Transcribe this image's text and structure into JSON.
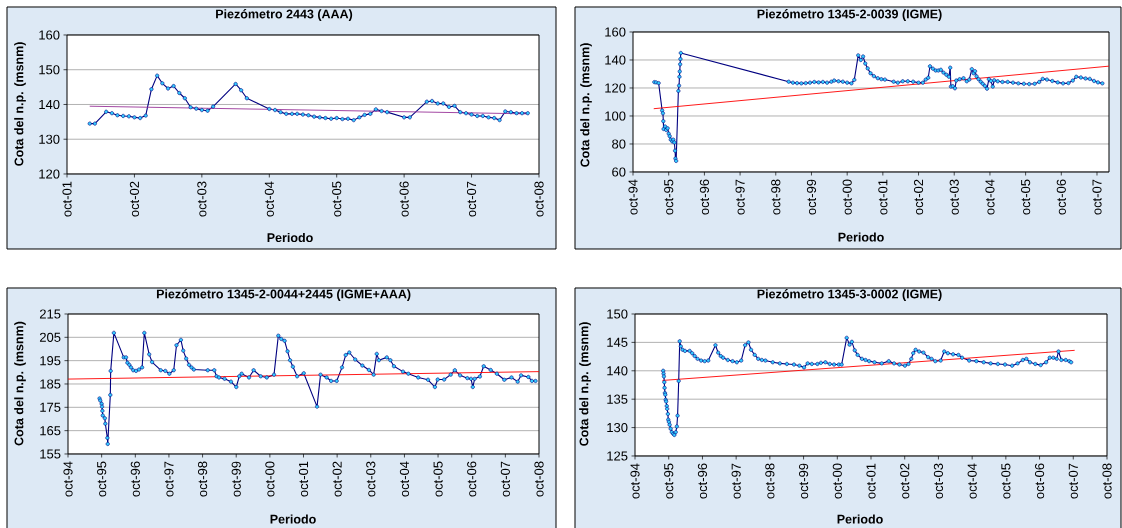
{
  "chart_data": [
    {
      "type": "line",
      "title": "Piezómetro 2443 (AAA)",
      "xlabel": "Periodo",
      "ylabel": "Cota del n.p. (msnm)",
      "grid": "y",
      "marker": "circle",
      "xlim": [
        "2001-10",
        "2008-10"
      ],
      "xticks": [
        {
          "value": "2001-10",
          "label": "oct-01"
        },
        {
          "value": "2002-10",
          "label": "oct-02"
        },
        {
          "value": "2003-10",
          "label": "oct-03"
        },
        {
          "value": "2004-10",
          "label": "oct-04"
        },
        {
          "value": "2005-10",
          "label": "oct-05"
        },
        {
          "value": "2006-10",
          "label": "oct-06"
        },
        {
          "value": "2007-10",
          "label": "oct-07"
        },
        {
          "value": "2008-10",
          "label": "oct-08"
        }
      ],
      "ylim": [
        120,
        160
      ],
      "yticks": [
        120,
        130,
        140,
        150,
        160
      ],
      "series": [
        {
          "color": "#000080",
          "x": [
            "2002-02",
            "2002-03",
            "2002-05",
            "2002-06",
            "2002-07",
            "2002-08",
            "2002-09",
            "2002-10",
            "2002-11",
            "2002-12",
            "2003-01",
            "2003-02",
            "2003-03",
            "2003-04",
            "2003-05",
            "2003-06",
            "2003-07",
            "2003-08",
            "2003-09",
            "2003-10",
            "2003-11",
            "2003-12",
            "2004-04",
            "2004-05",
            "2004-06",
            "2004-10",
            "2004-11",
            "2004-12",
            "2005-01",
            "2005-02",
            "2005-03",
            "2005-04",
            "2005-05",
            "2005-06",
            "2005-07",
            "2005-08",
            "2005-09",
            "2005-10",
            "2005-11",
            "2005-12",
            "2006-01",
            "2006-02",
            "2006-03",
            "2006-04",
            "2006-05",
            "2006-06",
            "2006-07",
            "2006-10",
            "2006-11",
            "2007-02",
            "2007-03",
            "2007-04",
            "2007-05",
            "2007-06",
            "2007-07",
            "2007-08",
            "2007-09",
            "2007-10",
            "2007-11",
            "2007-12",
            "2008-01",
            "2008-02",
            "2008-03",
            "2008-04",
            "2008-05",
            "2008-06",
            "2008-07",
            "2008-08"
          ],
          "values": [
            134.5,
            134.5,
            137.9,
            137.5,
            136.9,
            136.7,
            136.6,
            136.3,
            136.1,
            136.8,
            144.4,
            148.3,
            146.1,
            144.6,
            145.3,
            143.3,
            141.8,
            139.2,
            138.8,
            138.4,
            138.2,
            139.4,
            145.9,
            144.1,
            141.8,
            138.7,
            138.4,
            137.8,
            137.3,
            137.3,
            137.3,
            137.1,
            136.9,
            136.5,
            136.3,
            136.1,
            135.9,
            136.1,
            135.8,
            135.9,
            135.5,
            136.3,
            137.0,
            137.3,
            138.6,
            138.1,
            137.8,
            136.3,
            136.3,
            140.8,
            141.0,
            140.3,
            140.3,
            139.3,
            139.6,
            137.8,
            137.5,
            137.1,
            136.7,
            136.7,
            136.3,
            136.1,
            135.5,
            138.0,
            137.8,
            137.5,
            137.5,
            137.5
          ]
        },
        {
          "type": "line",
          "color": "#993399",
          "marker": "none",
          "x": [
            "2002-02",
            "2008-08"
          ],
          "values": [
            139.5,
            137.3
          ]
        }
      ]
    },
    {
      "type": "line",
      "title": "Piezómetro 1345-2-0039 (IGME)",
      "xlabel": "Periodo",
      "ylabel": "Cota del n.p. (msnm)",
      "grid": "y",
      "marker": "circle",
      "xlim": [
        "1994-10",
        "2008-02"
      ],
      "xticks": [
        {
          "value": "1994-10",
          "label": "oct-94"
        },
        {
          "value": "1995-10",
          "label": "oct-95"
        },
        {
          "value": "1996-10",
          "label": "oct-96"
        },
        {
          "value": "1997-10",
          "label": "oct-97"
        },
        {
          "value": "1998-10",
          "label": "oct-98"
        },
        {
          "value": "1999-10",
          "label": "oct-99"
        },
        {
          "value": "2000-10",
          "label": "oct-00"
        },
        {
          "value": "2001-10",
          "label": "oct-01"
        },
        {
          "value": "2002-10",
          "label": "oct-02"
        },
        {
          "value": "2003-10",
          "label": "oct-03"
        },
        {
          "value": "2004-10",
          "label": "oct-04"
        },
        {
          "value": "2005-10",
          "label": "oct-05"
        },
        {
          "value": "2006-10",
          "label": "oct-06"
        },
        {
          "value": "2007-10",
          "label": "oct-07"
        }
      ],
      "ylim": [
        60,
        160
      ],
      "yticks": [
        60,
        80,
        100,
        120,
        140,
        160
      ],
      "series": [
        {
          "color": "#000080",
          "x": [
            "1995-05-07",
            "1995-05-25",
            "1995-06-20",
            "1995-07-26",
            "1995-08-03",
            "1995-08-07",
            "1995-08-10",
            "1995-08-25",
            "1995-09-05",
            "1995-09-20",
            "1995-10-01",
            "1995-10-11",
            "1995-10-22",
            "1995-11-07",
            "1995-11-17",
            "1995-11-28",
            "1995-12-05",
            "1995-12-09",
            "1995-12-16",
            "1996-01-08",
            "1996-01-15",
            "1996-01-19",
            "1996-01-22",
            "1996-01-26",
            "1996-01-29",
            "1996-02-02",
            "1999-02-10",
            "1999-03-25",
            "1999-05-07",
            "1999-06-20",
            "1999-08-03",
            "1999-09-16",
            "1999-10-30",
            "1999-12-13",
            "2000-01-26",
            "2000-03-09",
            "2000-04-22",
            "2000-05-21",
            "2000-07-04",
            "2000-08-17",
            "2000-10-01",
            "2000-11-14",
            "2000-12-13",
            "2001-01-22",
            "2001-02-17",
            "2001-03-13",
            "2001-04-04",
            "2001-04-29",
            "2001-05-28",
            "2001-07-01",
            "2001-08-10",
            "2001-09-16",
            "2001-10-22",
            "2002-01-19",
            "2002-03-03",
            "2002-04-22",
            "2002-06-13",
            "2002-08-07",
            "2002-10-01",
            "2002-11-14",
            "2002-12-13",
            "2003-01-08",
            "2003-01-26",
            "2003-02-25",
            "2003-03-25",
            "2003-04-22",
            "2003-05-17",
            "2003-06-13",
            "2003-07-12",
            "2003-08-07",
            "2003-08-21",
            "2003-08-28",
            "2003-09-16",
            "2003-10-08",
            "2003-10-22",
            "2003-11-25",
            "2004-01-04",
            "2004-02-06",
            "2004-03-03",
            "2004-03-29",
            "2004-04-16",
            "2004-05-01",
            "2004-05-17",
            "2004-06-06",
            "2004-06-28",
            "2004-07-19",
            "2004-08-10",
            "2004-09-01",
            "2004-09-20",
            "2004-10-11",
            "2004-10-30",
            "2004-11-14",
            "2004-12-20",
            "2005-02-06",
            "2005-04-01",
            "2005-05-25",
            "2005-07-19",
            "2005-09-13",
            "2005-11-07",
            "2006-01-01",
            "2006-02-17",
            "2006-03-25",
            "2006-05-07",
            "2006-07-01",
            "2006-08-25",
            "2006-10-19",
            "2006-12-13",
            "2007-01-26",
            "2007-03-03",
            "2007-04-19",
            "2007-06-06",
            "2007-07-19",
            "2007-09-01",
            "2007-10-11",
            "2007-11-25"
          ],
          "values": [
            124.2,
            124.0,
            123.5,
            103.9,
            101.9,
            96.3,
            90.7,
            92.5,
            90.0,
            91.2,
            87.4,
            85.6,
            83.1,
            81.8,
            83.1,
            81.1,
            75.2,
            69.6,
            67.9,
            117.9,
            121.7,
            128.0,
            131.8,
            136.9,
            140.7,
            145.0,
            124.5,
            123.8,
            123.5,
            123.3,
            123.5,
            123.8,
            124.3,
            124.0,
            124.3,
            123.8,
            124.5,
            125.3,
            124.8,
            124.5,
            123.8,
            123.3,
            125.8,
            143.3,
            140.0,
            142.5,
            137.5,
            134.0,
            130.5,
            128.5,
            127.0,
            126.3,
            126.0,
            124.5,
            123.8,
            124.8,
            124.8,
            124.5,
            123.8,
            123.8,
            126.0,
            127.3,
            135.5,
            133.8,
            132.5,
            132.5,
            133.0,
            131.0,
            129.5,
            128.0,
            134.5,
            121.0,
            121.3,
            119.8,
            125.3,
            126.3,
            127.0,
            124.8,
            126.0,
            133.5,
            130.5,
            132.0,
            128.3,
            126.3,
            124.5,
            123.0,
            121.5,
            119.5,
            126.3,
            125.0,
            121.0,
            125.5,
            124.8,
            124.3,
            124.3,
            123.8,
            123.3,
            123.0,
            122.8,
            123.0,
            124.3,
            126.5,
            126.0,
            125.0,
            124.0,
            123.3,
            123.5,
            125.3,
            128.0,
            127.5,
            126.8,
            126.5,
            125.0,
            124.0,
            123.3
          ]
        },
        {
          "type": "line",
          "color": "#ff0000",
          "marker": "none",
          "x": [
            "1995-05-01",
            "2008-02-01"
          ],
          "values": [
            105.2,
            135.6
          ]
        }
      ]
    },
    {
      "type": "line",
      "title": "Piezómetro 1345-2-0044+2445 (IGME+AAA)",
      "xlabel": "Periodo",
      "ylabel": "Cota del n.p. (msnm)",
      "grid": "y",
      "marker": "circle",
      "xlim": [
        "1994-10",
        "2008-10"
      ],
      "xticks": [
        {
          "value": "1994-10",
          "label": "oct-94"
        },
        {
          "value": "1995-10",
          "label": "oct-95"
        },
        {
          "value": "1996-10",
          "label": "oct-96"
        },
        {
          "value": "1997-10",
          "label": "oct-97"
        },
        {
          "value": "1998-10",
          "label": "oct-98"
        },
        {
          "value": "1999-10",
          "label": "oct-99"
        },
        {
          "value": "2000-10",
          "label": "oct-00"
        },
        {
          "value": "2001-10",
          "label": "oct-01"
        },
        {
          "value": "2002-10",
          "label": "oct-02"
        },
        {
          "value": "2003-10",
          "label": "oct-03"
        },
        {
          "value": "2004-10",
          "label": "oct-04"
        },
        {
          "value": "2005-10",
          "label": "oct-05"
        },
        {
          "value": "2006-10",
          "label": "oct-06"
        },
        {
          "value": "2007-10",
          "label": "oct-07"
        },
        {
          "value": "2008-10",
          "label": "oct-08"
        }
      ],
      "ylim": [
        155,
        215
      ],
      "yticks": [
        155,
        165,
        175,
        185,
        195,
        205,
        215
      ],
      "series": [
        {
          "color": "#000080",
          "x": [
            "1995-09-08",
            "1995-09-16",
            "1995-10-01",
            "1995-10-05",
            "1995-10-09",
            "1995-10-13",
            "1995-11-05",
            "1995-11-10",
            "1995-12-02",
            "1995-12-06",
            "1996-01-03",
            "1996-01-07",
            "1996-02-11",
            "1996-05-28",
            "1996-06-22",
            "1996-07-07",
            "1996-07-28",
            "1996-08-15",
            "1996-09-08",
            "1996-10-09",
            "1996-11-10",
            "1996-12-14",
            "1997-01-07",
            "1997-03-01",
            "1997-04-01",
            "1997-07-04",
            "1997-08-23",
            "1997-10-06",
            "1997-11-22",
            "1997-12-22",
            "1998-02-08",
            "1998-03-05",
            "1998-04-06",
            "1998-05-07",
            "1998-06-03",
            "1998-06-28",
            "1998-11-26",
            "1999-02-05",
            "1999-03-02",
            "1999-03-28",
            "1999-05-28",
            "1999-08-05",
            "1999-10-02",
            "1999-11-03",
            "1999-11-29",
            "2000-02-17",
            "2000-04-07",
            "2000-06-23",
            "2000-08-28",
            "2000-11-15",
            "2001-01-01",
            "2001-02-02",
            "2001-03-10",
            "2001-04-11",
            "2001-05-08",
            "2001-06-08",
            "2001-07-24",
            "2001-10-04",
            "2002-02-25",
            "2002-04-04",
            "2002-06-09",
            "2002-07-28",
            "2002-09-26",
            "2002-11-23",
            "2003-01-02",
            "2003-02-10",
            "2003-04-15",
            "2003-07-02",
            "2003-09-11",
            "2003-11-01",
            "2003-12-05",
            "2003-12-28",
            "2004-03-23",
            "2004-05-01",
            "2004-06-09",
            "2004-09-15",
            "2004-11-13",
            "2005-02-28",
            "2005-06-14",
            "2005-08-28",
            "2005-09-27",
            "2005-12-06",
            "2006-02-15",
            "2006-04-01",
            "2006-05-28",
            "2006-08-15",
            "2006-09-24",
            "2006-10-13",
            "2006-11-02",
            "2006-12-29",
            "2007-02-08",
            "2007-04-25",
            "2007-07-01",
            "2007-09-20",
            "2007-12-07",
            "2008-02-12",
            "2008-03-20",
            "2008-06-07",
            "2008-07-16",
            "2008-08-24"
          ],
          "values": [
            178.8,
            177.9,
            176.5,
            175.3,
            173.5,
            171.5,
            170.3,
            168.0,
            161.9,
            159.3,
            180.3,
            190.6,
            206.9,
            196.4,
            196.4,
            194.1,
            193.2,
            192.1,
            190.9,
            190.6,
            191.2,
            192.1,
            206.9,
            197.7,
            194.4,
            190.9,
            190.6,
            189.4,
            190.9,
            201.6,
            203.9,
            199.3,
            195.9,
            193.2,
            192.1,
            191.2,
            190.9,
            190.9,
            188.3,
            187.8,
            187.2,
            186.0,
            183.7,
            188.3,
            189.4,
            187.8,
            190.9,
            188.3,
            187.8,
            189.0,
            205.7,
            204.3,
            203.5,
            199.0,
            195.2,
            192.4,
            188.3,
            189.6,
            175.3,
            189.0,
            187.8,
            186.3,
            186.3,
            192.1,
            197.4,
            198.5,
            195.5,
            192.9,
            191.0,
            189.0,
            197.9,
            195.2,
            196.4,
            195.2,
            192.6,
            190.3,
            189.4,
            187.8,
            186.8,
            183.7,
            186.9,
            186.9,
            189.0,
            190.9,
            188.7,
            187.5,
            187.2,
            183.7,
            187.2,
            188.2,
            192.6,
            191.0,
            189.4,
            186.8,
            187.8,
            186.0,
            188.7,
            188.0,
            186.3,
            186.3
          ]
        },
        {
          "type": "line",
          "color": "#ff0000",
          "marker": "none",
          "x": [
            "1994-10-01",
            "2008-10-01"
          ],
          "values": [
            187.1,
            190.3
          ]
        }
      ]
    },
    {
      "type": "line",
      "title": "Piezómetro 1345-3-0002 (IGME)",
      "xlabel": "Periodo",
      "ylabel": "Cota del n.p. (msnm)",
      "grid": "y",
      "marker": "circle",
      "xlim": [
        "1994-10",
        "2008-10"
      ],
      "xticks": [
        {
          "value": "1994-10",
          "label": "oct-94"
        },
        {
          "value": "1995-10",
          "label": "oct-95"
        },
        {
          "value": "1996-10",
          "label": "oct-96"
        },
        {
          "value": "1997-10",
          "label": "oct-97"
        },
        {
          "value": "1998-10",
          "label": "oct-98"
        },
        {
          "value": "1999-10",
          "label": "oct-99"
        },
        {
          "value": "2000-10",
          "label": "oct-00"
        },
        {
          "value": "2001-10",
          "label": "oct-01"
        },
        {
          "value": "2002-10",
          "label": "oct-02"
        },
        {
          "value": "2003-10",
          "label": "oct-03"
        },
        {
          "value": "2004-10",
          "label": "oct-04"
        },
        {
          "value": "2005-10",
          "label": "oct-05"
        },
        {
          "value": "2006-10",
          "label": "oct-06"
        },
        {
          "value": "2007-10",
          "label": "oct-07"
        },
        {
          "value": "2008-10",
          "label": "oct-08"
        }
      ],
      "ylim": [
        125,
        150
      ],
      "yticks": [
        125,
        130,
        135,
        140,
        145,
        150
      ],
      "series": [
        {
          "color": "#000080",
          "x": [
            "1995-08-02",
            "1995-08-06",
            "1995-08-10",
            "1995-08-14",
            "1995-08-17",
            "1995-08-21",
            "1995-08-25",
            "1995-08-29",
            "1995-09-03",
            "1995-09-10",
            "1995-09-14",
            "1995-09-22",
            "1995-09-26",
            "1995-10-03",
            "1995-10-11",
            "1995-10-22",
            "1995-11-04",
            "1995-11-19",
            "1995-12-01",
            "1995-12-16",
            "1995-12-28",
            "1996-01-05",
            "1996-01-17",
            "1996-01-28",
            "1996-02-09",
            "1996-02-28",
            "1996-03-25",
            "1996-05-15",
            "1996-06-11",
            "1996-07-08",
            "1996-08-09",
            "1996-09-17",
            "1996-10-25",
            "1996-12-03",
            "1997-02-19",
            "1997-03-20",
            "1997-04-17",
            "1997-05-13",
            "1997-07-03",
            "1997-08-23",
            "1997-10-08",
            "1997-11-25",
            "1998-01-06",
            "1998-02-11",
            "1998-03-11",
            "1998-04-20",
            "1998-05-28",
            "1998-07-06",
            "1998-08-14",
            "1998-11-01",
            "1999-01-17",
            "1999-04-03",
            "1999-06-19",
            "1999-08-17",
            "1999-10-06",
            "1999-11-14",
            "1999-12-29",
            "2000-02-28",
            "2000-04-06",
            "2000-05-25",
            "2000-07-11",
            "2000-08-27",
            "2000-10-17",
            "2000-11-17",
            "2001-01-11",
            "2001-02-11",
            "2001-03-08",
            "2001-04-08",
            "2001-05-09",
            "2001-06-25",
            "2001-08-03",
            "2001-09-11",
            "2001-11-08",
            "2002-01-25",
            "2002-04-11",
            "2002-06-08",
            "2002-08-05",
            "2002-10-03",
            "2002-11-11",
            "2002-12-11",
            "2003-01-01",
            "2003-01-27",
            "2003-03-06",
            "2003-04-22",
            "2003-06-11",
            "2003-07-19",
            "2003-08-28",
            "2003-10-25",
            "2003-12-03",
            "2004-01-11",
            "2004-03-08",
            "2004-05-05",
            "2004-06-14",
            "2004-08-30",
            "2004-11-16",
            "2005-02-03",
            "2005-04-19",
            "2005-07-06",
            "2005-09-22",
            "2005-12-08",
            "2006-02-05",
            "2006-04-03",
            "2006-05-11",
            "2006-06-19",
            "2006-08-16",
            "2006-10-13",
            "2006-12-11",
            "2007-01-19",
            "2007-02-27",
            "2007-04-05",
            "2007-04-24",
            "2007-05-25",
            "2007-07-11",
            "2007-08-19",
            "2007-09-08"
          ],
          "values": [
            140.0,
            139.5,
            139.0,
            138.0,
            137.0,
            136.1,
            135.8,
            134.9,
            134.6,
            133.8,
            133.3,
            132.4,
            131.4,
            131.0,
            130.5,
            129.8,
            129.2,
            128.9,
            128.7,
            129.2,
            130.2,
            132.1,
            138.2,
            145.2,
            144.3,
            143.7,
            143.5,
            143.5,
            143.1,
            142.6,
            142.1,
            141.8,
            141.7,
            141.8,
            144.5,
            143.2,
            142.6,
            142.3,
            141.9,
            141.7,
            141.5,
            141.8,
            144.5,
            145.0,
            143.7,
            142.8,
            142.1,
            141.9,
            141.8,
            141.5,
            141.3,
            141.2,
            141.1,
            140.9,
            140.6,
            141.3,
            141.2,
            141.2,
            141.4,
            141.5,
            141.2,
            141.1,
            141.1,
            141.1,
            145.8,
            144.6,
            145.1,
            143.6,
            142.8,
            142.1,
            141.9,
            141.7,
            141.5,
            141.3,
            141.7,
            141.3,
            141.1,
            140.9,
            141.2,
            142.1,
            143.1,
            143.7,
            143.4,
            143.2,
            142.4,
            142.1,
            141.7,
            141.8,
            143.4,
            143.1,
            142.9,
            142.8,
            142.3,
            141.8,
            141.7,
            141.5,
            141.3,
            141.2,
            141.1,
            140.9,
            141.3,
            141.9,
            142.1,
            141.5,
            141.2,
            141.0,
            141.5,
            142.3,
            142.3,
            142.1,
            143.4,
            141.9,
            141.9,
            141.7,
            141.5
          ]
        },
        {
          "type": "line",
          "color": "#ff0000",
          "marker": "none",
          "x": [
            "1995-07-25",
            "2007-10-16"
          ],
          "values": [
            138.3,
            143.6
          ]
        }
      ]
    }
  ]
}
